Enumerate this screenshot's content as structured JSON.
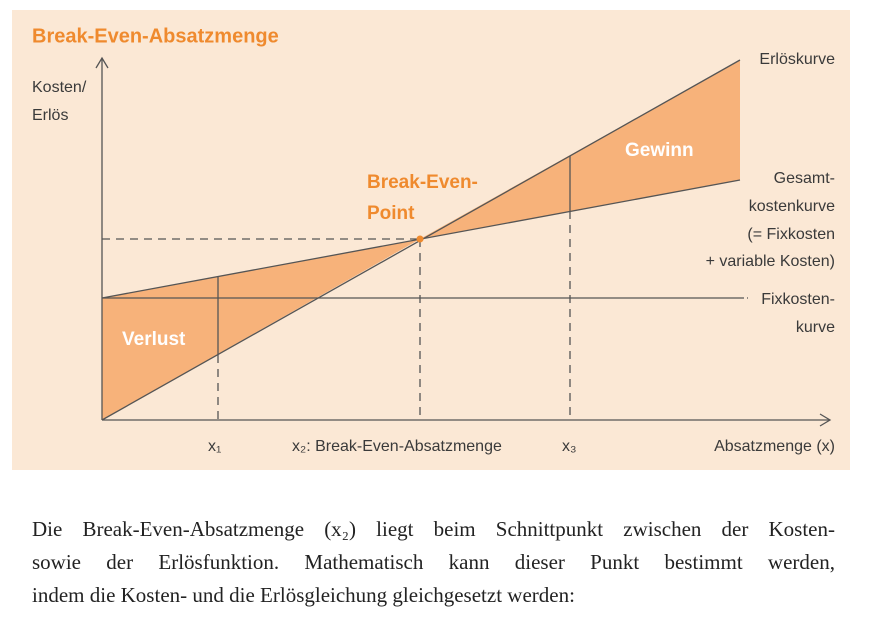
{
  "figure": {
    "title": "Break-Even-Absatzmenge",
    "y_axis_label": [
      "Kosten/",
      "Erlös"
    ],
    "x_axis_label": "Absatzmenge (x)",
    "revenue_label": "Erlöskurve",
    "total_cost_label": [
      "Gesamt-",
      "kostenkurve",
      "(= Fixkosten",
      "+ variable Kosten)"
    ],
    "fixed_cost_label": [
      "Fixkosten-",
      "kurve"
    ],
    "profit_label": "Gewinn",
    "loss_label": "Verlust",
    "break_even_point_label": [
      "Break-Even-",
      "Point"
    ],
    "x_marks": [
      "x₁",
      "x₂: Break-Even-Absatzmenge",
      "x₃"
    ]
  },
  "paragraph": {
    "lines": [
      "Die Break-Even-Absatzmenge (x₂) liegt beim Schnittpunkt zwischen der Kosten-",
      "sowie der Erlösfunktion. Mathematisch kann dieser Punkt bestimmt werden,",
      "indem die Kosten- und die Erlösgleichung gleichgesetzt werden:"
    ]
  }
}
